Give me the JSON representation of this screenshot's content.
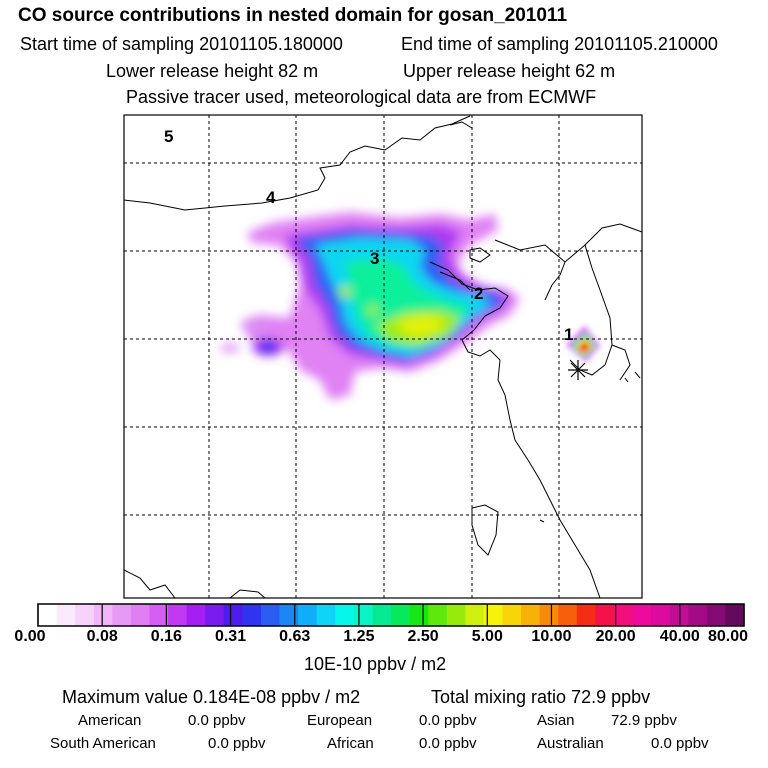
{
  "header": {
    "title": "CO  source contributions in nested domain for gosan_201011",
    "start_time": "Start time of sampling 20101105.180000",
    "end_time": "End time of sampling 20101105.210000",
    "lower_release": "Lower release height   82 m",
    "upper_release": "Upper release height   62 m",
    "tracer_info": "Passive tracer used, meteorological data are from ECMWF"
  },
  "map": {
    "contour_labels": [
      "1",
      "2",
      "3",
      "4",
      "5"
    ]
  },
  "colorbar": {
    "labels": [
      "0.00",
      "0.08",
      "0.16",
      "0.31",
      "0.63",
      "1.25",
      "2.50",
      "5.00",
      "10.00",
      "20.00",
      "40.00",
      "80.00"
    ],
    "unit": "10E-10 ppbv / m2",
    "colors": [
      "#ffffff",
      "#fbe9fd",
      "#f7d3fb",
      "#f0b6f8",
      "#e79af5",
      "#df7ff3",
      "#d45ff2",
      "#c13af3",
      "#a51ff2",
      "#7a1bf0",
      "#4f1bee",
      "#2f35ef",
      "#2c5cf2",
      "#1b86f6",
      "#10adf8",
      "#0fd4f7",
      "#07f6ec",
      "#08f3c6",
      "#06eb93",
      "#06e95a",
      "#15e615",
      "#5ee80c",
      "#97ea0c",
      "#ceef10",
      "#f5f30a",
      "#f9d408",
      "#f8b108",
      "#f78a08",
      "#f75f0b",
      "#f52d14",
      "#f3124a",
      "#f30f7b",
      "#ee0a9d",
      "#dc0a9e",
      "#c10c93",
      "#a50a86",
      "#860a73",
      "#640a5c"
    ]
  },
  "footer": {
    "maximum_value": "Maximum value  0.184E-08 ppbv / m2",
    "total_mixing": "Total mixing ratio       72.9 ppbv",
    "american_label": "American",
    "american_value": "0.0 ppbv",
    "european_label": "European",
    "european_value": "0.0 ppbv",
    "asian_label": "Asian",
    "asian_value": "72.9 ppbv",
    "south_american_label": "South American",
    "south_american_value": "0.0 ppbv",
    "african_label": "African",
    "african_value": "0.0 ppbv",
    "australian_label": "Australian",
    "australian_value": "0.0 ppbv"
  }
}
